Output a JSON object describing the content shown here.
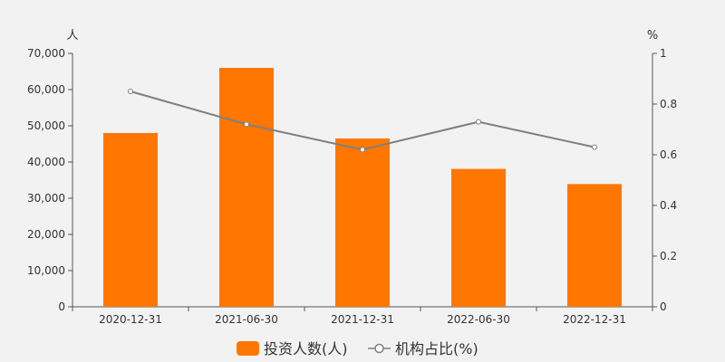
{
  "chart_data": {
    "type": "bar",
    "categories": [
      "2020-12-31",
      "2021-06-30",
      "2021-12-31",
      "2022-06-30",
      "2022-12-31"
    ],
    "series": [
      {
        "name": "投资人数(人)",
        "type": "bar",
        "axis": "left",
        "values": [
          48000,
          66000,
          46500,
          38100,
          33900
        ],
        "color": "#ff7700"
      },
      {
        "name": "机构占比(%)",
        "type": "line",
        "axis": "right",
        "values": [
          0.85,
          0.72,
          0.62,
          0.73,
          0.63
        ],
        "color": "#7f7f7f"
      }
    ],
    "left_axis": {
      "unit": "人",
      "min": 0,
      "max": 70000,
      "ticks": [
        "0",
        "10,000",
        "20,000",
        "30,000",
        "40,000",
        "50,000",
        "60,000",
        "70,000"
      ]
    },
    "right_axis": {
      "unit": "%",
      "min": 0,
      "max": 1,
      "ticks": [
        "0",
        "0.2",
        "0.4",
        "0.6",
        "0.8",
        "1"
      ]
    },
    "legend_position": "bottom-center",
    "grid": false
  }
}
